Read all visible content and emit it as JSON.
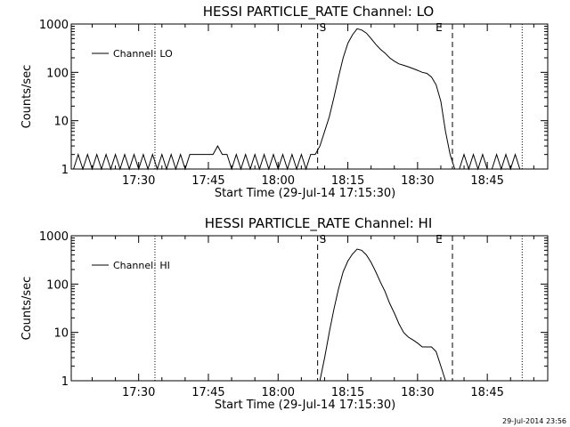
{
  "chart_data": [
    {
      "type": "line",
      "title": "HESSI PARTICLE_RATE Channel: LO",
      "xlabel": "Start Time (29-Jul-14 17:15:30)",
      "ylabel": "Counts/sec",
      "y_scale": "log",
      "ylim": [
        1,
        1000
      ],
      "xlim": [
        "17:15:30",
        "18:58:00"
      ],
      "x_ticks": [
        "17:30",
        "17:45",
        "18:00",
        "18:15",
        "18:30",
        "18:45"
      ],
      "y_ticks": [
        "1",
        "10",
        "100",
        "1000"
      ],
      "legend": {
        "entries": [
          "Channel: LO"
        ],
        "position": "top-left"
      },
      "markers": {
        "dotted": [
          "17:33:30",
          "18:52:30"
        ],
        "dashed": [
          "18:08:30",
          "18:37:30"
        ],
        "labels": [
          {
            "text": "S",
            "x": "18:08:30"
          },
          {
            "text": "E",
            "x": "18:33:30"
          }
        ]
      },
      "series": [
        {
          "name": "Channel: LO",
          "x": [
            "17:16:00",
            "17:17:00",
            "17:18:00",
            "17:19:00",
            "17:20:00",
            "17:21:00",
            "17:22:00",
            "17:23:00",
            "17:24:00",
            "17:25:00",
            "17:26:00",
            "17:27:00",
            "17:28:00",
            "17:29:00",
            "17:30:00",
            "17:31:00",
            "17:32:00",
            "17:33:00",
            "17:34:00",
            "17:35:00",
            "17:36:00",
            "17:37:00",
            "17:38:00",
            "17:39:00",
            "17:40:00",
            "17:41:00",
            "17:42:00",
            "17:43:00",
            "17:44:00",
            "17:45:00",
            "17:46:00",
            "17:47:00",
            "17:48:00",
            "17:49:00",
            "17:50:00",
            "17:51:00",
            "17:52:00",
            "17:53:00",
            "17:54:00",
            "17:55:00",
            "17:56:00",
            "17:57:00",
            "17:58:00",
            "17:59:00",
            "18:00:00",
            "18:01:00",
            "18:02:00",
            "18:03:00",
            "18:04:00",
            "18:05:00",
            "18:06:00",
            "18:07:00",
            "18:08:00",
            "18:09:00",
            "18:10:00",
            "18:11:00",
            "18:12:00",
            "18:13:00",
            "18:14:00",
            "18:15:00",
            "18:16:00",
            "18:17:00",
            "18:18:00",
            "18:19:00",
            "18:20:00",
            "18:21:00",
            "18:22:00",
            "18:23:00",
            "18:24:00",
            "18:25:00",
            "18:26:00",
            "18:27:00",
            "18:28:00",
            "18:29:00",
            "18:30:00",
            "18:31:00",
            "18:32:00",
            "18:33:00",
            "18:34:00",
            "18:35:00",
            "18:36:00",
            "18:37:00",
            "18:38:00",
            "18:39:00",
            "18:40:00",
            "18:41:00",
            "18:42:00",
            "18:43:00",
            "18:44:00",
            "18:45:00",
            "18:46:00",
            "18:47:00",
            "18:48:00",
            "18:49:00",
            "18:50:00",
            "18:51:00",
            "18:52:00"
          ],
          "values": [
            1,
            2,
            1,
            2,
            1,
            2,
            1,
            2,
            1,
            2,
            1,
            2,
            1,
            2,
            1,
            2,
            1,
            2,
            1,
            2,
            1,
            2,
            1,
            2,
            1,
            2,
            2,
            2,
            2,
            2,
            2,
            3,
            2,
            2,
            1,
            2,
            1,
            2,
            1,
            2,
            1,
            2,
            1,
            2,
            1,
            2,
            1,
            2,
            1,
            2,
            1,
            2,
            2,
            3,
            6,
            12,
            30,
            80,
            200,
            400,
            600,
            800,
            750,
            650,
            500,
            380,
            300,
            250,
            200,
            170,
            150,
            140,
            130,
            120,
            110,
            100,
            95,
            80,
            55,
            25,
            6,
            2,
            1,
            1,
            2,
            1,
            2,
            1,
            2,
            1,
            1,
            2,
            1,
            2,
            1,
            2,
            1
          ]
        }
      ]
    },
    {
      "type": "line",
      "title": "HESSI PARTICLE_RATE Channel: HI",
      "xlabel": "Start Time (29-Jul-14 17:15:30)",
      "ylabel": "Counts/sec",
      "y_scale": "log",
      "ylim": [
        1,
        1000
      ],
      "xlim": [
        "17:15:30",
        "18:58:00"
      ],
      "x_ticks": [
        "17:30",
        "17:45",
        "18:00",
        "18:15",
        "18:30",
        "18:45"
      ],
      "y_ticks": [
        "1",
        "10",
        "100",
        "1000"
      ],
      "legend": {
        "entries": [
          "Channel: HI"
        ],
        "position": "top-left"
      },
      "markers": {
        "dotted": [
          "17:33:30",
          "18:52:30"
        ],
        "dashed": [
          "18:08:30",
          "18:37:30"
        ],
        "labels": [
          {
            "text": "S",
            "x": "18:08:30"
          },
          {
            "text": "E",
            "x": "18:33:30"
          }
        ]
      },
      "series": [
        {
          "name": "Channel: HI",
          "x": [
            "18:09:00",
            "18:10:00",
            "18:11:00",
            "18:12:00",
            "18:13:00",
            "18:14:00",
            "18:15:00",
            "18:16:00",
            "18:17:00",
            "18:18:00",
            "18:19:00",
            "18:20:00",
            "18:21:00",
            "18:22:00",
            "18:23:00",
            "18:24:00",
            "18:25:00",
            "18:26:00",
            "18:27:00",
            "18:28:00",
            "18:29:00",
            "18:30:00",
            "18:31:00",
            "18:32:00",
            "18:33:00",
            "18:34:00",
            "18:35:00",
            "18:36:00"
          ],
          "values": [
            1,
            3,
            10,
            30,
            80,
            180,
            300,
            420,
            530,
            500,
            400,
            280,
            180,
            110,
            70,
            40,
            25,
            15,
            10,
            8,
            7,
            6,
            5,
            5,
            5,
            4,
            2,
            1
          ]
        }
      ]
    }
  ],
  "timestamp": "29-Jul-2014 23:56"
}
